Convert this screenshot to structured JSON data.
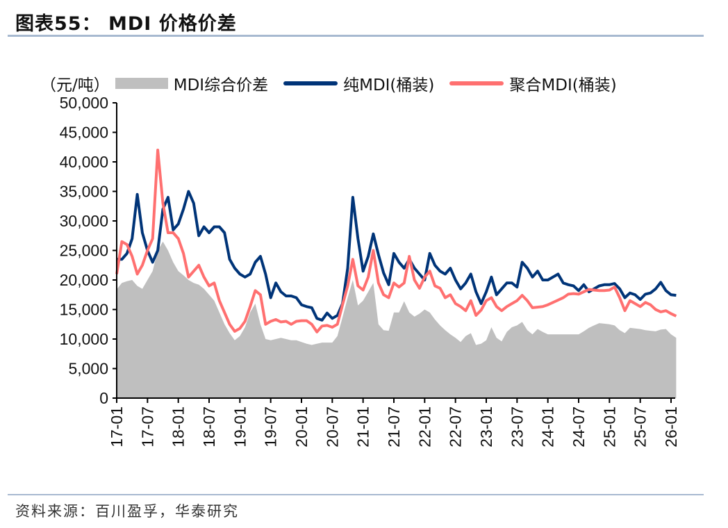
{
  "header": {
    "title": "图表55：  MDI 价格价差"
  },
  "source": "资料来源：百川盈孚，华泰研究",
  "chart_data": {
    "type": "line",
    "title": "",
    "ylabel": "（元/吨）",
    "xlabel": "",
    "ylim": [
      0,
      50000
    ],
    "yticks": [
      0,
      5000,
      10000,
      15000,
      20000,
      25000,
      30000,
      35000,
      40000,
      45000,
      50000
    ],
    "ytick_labels": [
      "0",
      "5,000",
      "10,000",
      "15,000",
      "20,000",
      "25,000",
      "30,000",
      "35,000",
      "40,000",
      "45,000",
      "50,000"
    ],
    "xtick_labels": [
      "17-01",
      "17-07",
      "18-01",
      "18-07",
      "19-01",
      "19-07",
      "20-01",
      "20-07",
      "21-01",
      "21-07",
      "22-01",
      "22-07",
      "23-01",
      "23-07",
      "24-01",
      "24-07",
      "25-01",
      "25-07",
      "26-01"
    ],
    "grid": false,
    "legend_placement": "top",
    "x": [
      "2017-01",
      "2017-02",
      "2017-03",
      "2017-04",
      "2017-05",
      "2017-06",
      "2017-07",
      "2017-08",
      "2017-09",
      "2017-10",
      "2017-11",
      "2017-12",
      "2018-01",
      "2018-02",
      "2018-03",
      "2018-04",
      "2018-05",
      "2018-06",
      "2018-07",
      "2018-08",
      "2018-09",
      "2018-10",
      "2018-11",
      "2018-12",
      "2019-01",
      "2019-02",
      "2019-03",
      "2019-04",
      "2019-05",
      "2019-06",
      "2019-07",
      "2019-08",
      "2019-09",
      "2019-10",
      "2019-11",
      "2019-12",
      "2020-01",
      "2020-02",
      "2020-03",
      "2020-04",
      "2020-05",
      "2020-06",
      "2020-07",
      "2020-08",
      "2020-09",
      "2020-10",
      "2020-11",
      "2020-12",
      "2021-01",
      "2021-02",
      "2021-03",
      "2021-04",
      "2021-05",
      "2021-06",
      "2021-07",
      "2021-08",
      "2021-09",
      "2021-10",
      "2021-11",
      "2021-12",
      "2022-01",
      "2022-02",
      "2022-03",
      "2022-04",
      "2022-05",
      "2022-06",
      "2022-07",
      "2022-08",
      "2022-09",
      "2022-10",
      "2022-11",
      "2022-12",
      "2023-01",
      "2023-02",
      "2023-03",
      "2023-04",
      "2023-05",
      "2023-06",
      "2023-07",
      "2023-08",
      "2023-09",
      "2023-10",
      "2023-11",
      "2023-12",
      "2024-01",
      "2024-02",
      "2024-03",
      "2024-04",
      "2024-05",
      "2024-06",
      "2024-07",
      "2024-08",
      "2024-09",
      "2024-10",
      "2024-11",
      "2024-12",
      "2025-01",
      "2025-02",
      "2025-03",
      "2025-04",
      "2025-05",
      "2025-06",
      "2025-07",
      "2025-08",
      "2025-09",
      "2025-10",
      "2025-11",
      "2025-12",
      "2026-01",
      "2026-02"
    ],
    "series": [
      {
        "name": "MDI综合价差",
        "type": "area",
        "color": "#bfbfbf",
        "values": [
          18400,
          19500,
          19800,
          20000,
          19000,
          18500,
          20000,
          21500,
          25000,
          26500,
          25000,
          23000,
          21500,
          20800,
          20000,
          19500,
          19200,
          18500,
          17500,
          16500,
          14500,
          12500,
          11000,
          9800,
          10500,
          12000,
          14500,
          16000,
          12500,
          10000,
          9800,
          10000,
          10200,
          10000,
          9800,
          9800,
          9500,
          9200,
          9000,
          9200,
          9400,
          9400,
          9400,
          10500,
          13700,
          17000,
          20000,
          15700,
          16500,
          18000,
          19500,
          12500,
          11500,
          11400,
          14500,
          14500,
          16400,
          14500,
          13800,
          14300,
          15000,
          14500,
          13300,
          12300,
          11500,
          10800,
          10200,
          9500,
          10500,
          11000,
          9000,
          9200,
          9800,
          12000,
          10200,
          9600,
          11200,
          12000,
          12300,
          12900,
          11500,
          10800,
          11700,
          11200,
          10800,
          10800,
          10800,
          10800,
          10800,
          10800,
          10800,
          11300,
          11900,
          12300,
          12700,
          12600,
          12500,
          12300,
          11500,
          11000,
          11900,
          11800,
          11700,
          11500,
          11400,
          11300,
          11600,
          11700,
          10800,
          10200
        ]
      },
      {
        "name": "纯MDI(桶装)",
        "type": "line",
        "color": "#003478",
        "values": [
          23500,
          23500,
          24500,
          27000,
          34500,
          28000,
          25000,
          23000,
          25000,
          32000,
          34000,
          28500,
          29500,
          32000,
          35000,
          33000,
          27500,
          29000,
          28000,
          29000,
          29000,
          28000,
          23500,
          22000,
          21000,
          20500,
          21000,
          23000,
          24000,
          21000,
          17000,
          19500,
          18000,
          17300,
          17300,
          17000,
          15800,
          15500,
          15300,
          13500,
          13200,
          14400,
          13500,
          14000,
          16000,
          22000,
          34000,
          27000,
          21500,
          24000,
          27800,
          24300,
          21200,
          19200,
          24500,
          23000,
          22000,
          23500,
          22000,
          21000,
          20000,
          24500,
          22500,
          21500,
          21000,
          22000,
          20000,
          18500,
          19500,
          21000,
          18000,
          16000,
          18000,
          20500,
          17500,
          18500,
          19500,
          19500,
          18800,
          23000,
          22000,
          20500,
          21500,
          20000,
          20000,
          20500,
          21000,
          19500,
          19200,
          19000,
          18200,
          19200,
          18000,
          18500,
          19000,
          19200,
          19200,
          19400,
          18500,
          17000,
          17800,
          17500,
          16700,
          17600,
          17800,
          18500,
          19600,
          18200,
          17500,
          17400
        ]
      },
      {
        "name": "聚合MDI(桶装)",
        "type": "line",
        "color": "#ff7070",
        "values": [
          21000,
          26500,
          26000,
          24000,
          21000,
          22500,
          25000,
          27000,
          42000,
          33000,
          28000,
          28000,
          27000,
          24500,
          20500,
          21500,
          22500,
          20500,
          19000,
          19500,
          16500,
          14500,
          12500,
          11300,
          11800,
          13000,
          15500,
          18200,
          17500,
          12500,
          13000,
          13300,
          12900,
          13000,
          12500,
          13000,
          13100,
          13100,
          12500,
          11200,
          12200,
          12300,
          12000,
          12500,
          15800,
          19000,
          23500,
          19000,
          18300,
          20500,
          25000,
          19500,
          17500,
          17000,
          19500,
          18800,
          19500,
          24000,
          20000,
          18600,
          20500,
          21500,
          19000,
          18600,
          17000,
          17500,
          16000,
          15500,
          14800,
          16500,
          14000,
          14900,
          16500,
          17000,
          15500,
          14800,
          15500,
          16000,
          16500,
          17400,
          16500,
          15300,
          15400,
          15500,
          15800,
          16200,
          16600,
          17000,
          17600,
          17700,
          17600,
          18000,
          18400,
          18300,
          18200,
          18200,
          18300,
          18800,
          17000,
          14800,
          16500,
          16000,
          15500,
          16200,
          15800,
          15000,
          14600,
          14800,
          14300,
          13900
        ]
      }
    ]
  }
}
